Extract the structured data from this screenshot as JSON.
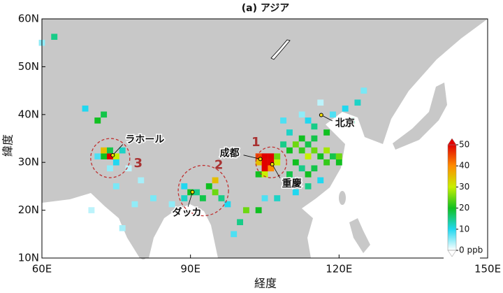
{
  "chart_data": {
    "type": "map",
    "title": "(a) アジア",
    "xlabel": "経度",
    "ylabel": "緯度",
    "xlim": [
      60,
      150
    ],
    "ylim": [
      10,
      60
    ],
    "xticks": [
      {
        "value": 60,
        "label": "60E"
      },
      {
        "value": 90,
        "label": "90E"
      },
      {
        "value": 120,
        "label": "120E"
      },
      {
        "value": 150,
        "label": "150E"
      }
    ],
    "yticks": [
      {
        "value": 10,
        "label": "10N"
      },
      {
        "value": 20,
        "label": "20N"
      },
      {
        "value": 30,
        "label": "30N"
      },
      {
        "value": 40,
        "label": "40N"
      },
      {
        "value": 50,
        "label": "50N"
      },
      {
        "value": 60,
        "label": "60N"
      }
    ],
    "clim": [
      0,
      50
    ],
    "colorscale": [
      "#ffffff",
      "#20d8f0",
      "#10c020",
      "#c8f000",
      "#ff8c00",
      "#e00000"
    ],
    "cticks": [
      {
        "value": 0,
        "label": "0 ppb"
      },
      10,
      20,
      30,
      40,
      50
    ],
    "cells": {
      "lon": [
        103.75,
        105,
        106.25,
        105,
        106.25,
        103.75,
        105,
        106.25,
        107.5,
        107.5,
        105,
        103.75,
        110,
        111.25,
        112.5,
        113.75,
        115,
        116.25,
        117.5,
        112.5,
        115,
        113.75,
        111.25,
        112.5,
        117.5,
        118.75,
        115,
        113.75,
        117.5,
        110,
        108.75,
        110,
        111.25,
        113.75,
        115,
        116.25,
        113.75,
        120,
        120,
        108.75,
        112.5,
        116.25,
        118.75,
        121.25,
        123.75,
        125,
        122.5,
        111.25,
        107.5,
        105,
        88.75,
        90,
        91.25,
        92.5,
        93.75,
        95,
        95,
        96.25,
        97.5,
        88.75,
        86.25,
        101.25,
        103.75,
        100,
        98.75,
        72.5,
        73.75,
        75,
        72.5,
        73.75,
        76.25,
        75,
        71.25,
        73.75,
        77.5,
        80,
        75,
        70,
        76.25,
        78.75,
        82.5,
        71.25,
        72.5,
        68.75,
        62.5,
        60
      ],
      "lat": [
        31.25,
        31.25,
        31.25,
        30,
        30,
        30,
        28.75,
        28.75,
        30,
        31.25,
        27.5,
        27.5,
        32.5,
        33.75,
        32.5,
        33.75,
        32.5,
        31.25,
        32.5,
        35,
        35,
        31.25,
        30,
        28.75,
        30,
        31.25,
        37.5,
        38.75,
        36.25,
        36.25,
        33.75,
        27.5,
        26.25,
        27.5,
        28.75,
        26.25,
        25,
        30,
        31.25,
        38.75,
        40,
        42.5,
        40,
        41.25,
        42.5,
        45,
        38.75,
        23.75,
        22.5,
        22.5,
        22.5,
        23.75,
        23.75,
        22.5,
        25,
        26.25,
        23.75,
        22.5,
        21.25,
        25,
        21.25,
        20,
        20,
        17.5,
        15,
        31.25,
        31.25,
        31.25,
        32.5,
        32.5,
        32.5,
        30,
        31.25,
        28.75,
        28.75,
        26.25,
        25,
        20,
        16.25,
        21.25,
        22.5,
        38.75,
        40,
        41.25,
        56.25,
        55
      ],
      "values": [
        45,
        50,
        50,
        50,
        50,
        35,
        50,
        40,
        30,
        25,
        30,
        20,
        20,
        25,
        22,
        18,
        25,
        20,
        28,
        20,
        18,
        30,
        20,
        15,
        22,
        18,
        15,
        10,
        20,
        12,
        15,
        18,
        12,
        20,
        18,
        10,
        15,
        20,
        25,
        8,
        5,
        3,
        8,
        10,
        12,
        6,
        15,
        10,
        12,
        8,
        12,
        20,
        15,
        18,
        20,
        35,
        25,
        15,
        10,
        10,
        5,
        25,
        20,
        15,
        8,
        20,
        50,
        30,
        35,
        18,
        12,
        10,
        8,
        5,
        3,
        4,
        6,
        3,
        4,
        5,
        6,
        20,
        18,
        10,
        15,
        5
      ]
    },
    "cities": [
      {
        "name": "ラホール",
        "lon": 74.3,
        "lat": 31.5
      },
      {
        "name": "ダッカ",
        "lon": 90.4,
        "lat": 23.8
      },
      {
        "name": "成都",
        "lon": 104.1,
        "lat": 30.7
      },
      {
        "name": "重慶",
        "lon": 106.5,
        "lat": 29.6
      },
      {
        "name": "北京",
        "lon": 116.4,
        "lat": 39.9
      }
    ],
    "regions": [
      {
        "label": "1",
        "lon": 106.3,
        "lat": 30.0
      },
      {
        "label": "2",
        "lon": 92.6,
        "lat": 24.1
      },
      {
        "label": "3",
        "lon": 73.8,
        "lat": 30.9
      }
    ]
  }
}
